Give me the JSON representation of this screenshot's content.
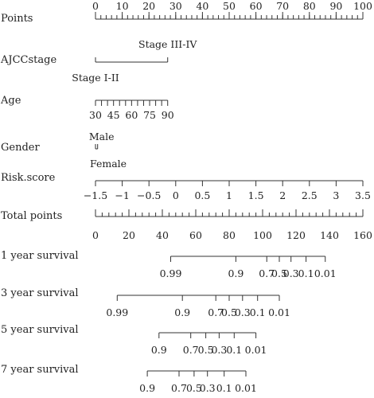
{
  "chart_data": {
    "type": "nomogram",
    "rows": [
      {
        "label": "Points",
        "kind": "points",
        "labels": [
          "0",
          "10",
          "20",
          "30",
          "40",
          "50",
          "60",
          "70",
          "80",
          "90",
          "100"
        ],
        "values": [
          0,
          10,
          20,
          30,
          40,
          50,
          60,
          70,
          80,
          90,
          100
        ],
        "min_value": 0,
        "max_value": 100,
        "minor_step": 2
      },
      {
        "label": "AJCCstage",
        "kind": "categorical",
        "levels": [
          {
            "name": "Stage I-II",
            "points": 0
          },
          {
            "name": "Stage III-IV",
            "points": 27
          }
        ]
      },
      {
        "label": "Age",
        "kind": "continuous",
        "labels": [
          "30",
          "45",
          "60",
          "75",
          "90"
        ],
        "values": [
          30,
          45,
          60,
          75,
          90
        ],
        "min_value": 30,
        "max_value": 90,
        "minor_step": 5,
        "points_at_min": 0,
        "points_at_max": 27
      },
      {
        "label": "Gender",
        "kind": "categorical",
        "levels": [
          {
            "name": "Male",
            "points": 0.8
          },
          {
            "name": "Female",
            "points": 0
          }
        ]
      },
      {
        "label": "Risk.score",
        "kind": "continuous",
        "labels": [
          "−1.5",
          "−1",
          "−0.5",
          "0",
          "0.5",
          "1",
          "1.5",
          "2",
          "2.5",
          "3",
          "3.5"
        ],
        "values": [
          -1.5,
          -1,
          -0.5,
          0,
          0.5,
          1,
          1.5,
          2,
          2.5,
          3,
          3.5
        ],
        "min_value": -1.5,
        "max_value": 3.5,
        "minor_step": 0.5,
        "points_at_min": 0,
        "points_at_max": 100
      },
      {
        "label": "Total points",
        "kind": "total",
        "labels": [
          "0",
          "20",
          "40",
          "60",
          "80",
          "100",
          "120",
          "140",
          "160"
        ],
        "values": [
          0,
          20,
          40,
          60,
          80,
          100,
          120,
          140,
          160
        ],
        "min_value": 0,
        "max_value": 160,
        "minor_step": 4
      },
      {
        "label": "1 year survival",
        "kind": "probability",
        "labels": [
          "0.99",
          "0.9",
          "0.7",
          "0.5",
          "0.3",
          "0.1",
          "0.01"
        ],
        "total_points": [
          45,
          84,
          102.5,
          110,
          117,
          126,
          137.5
        ]
      },
      {
        "label": "3 year survival",
        "kind": "probability",
        "labels": [
          "0.99",
          "0.9",
          "0.7",
          "0.5",
          "0.3",
          "0.1",
          "0.01"
        ],
        "total_points": [
          13,
          52,
          72,
          80,
          88,
          97,
          110
        ]
      },
      {
        "label": "5 year survival",
        "kind": "probability",
        "labels": [
          "0.9",
          "0.7",
          "0.5",
          "0.3",
          "0.1",
          "0.01"
        ],
        "total_points": [
          38,
          57,
          66,
          74,
          83,
          96
        ]
      },
      {
        "label": "7 year survival",
        "kind": "probability",
        "labels": [
          "0.9",
          "0.7",
          "0.5",
          "0.3",
          "0.1",
          "0.01"
        ],
        "total_points": [
          31,
          50,
          59,
          67,
          77,
          90
        ]
      }
    ]
  }
}
